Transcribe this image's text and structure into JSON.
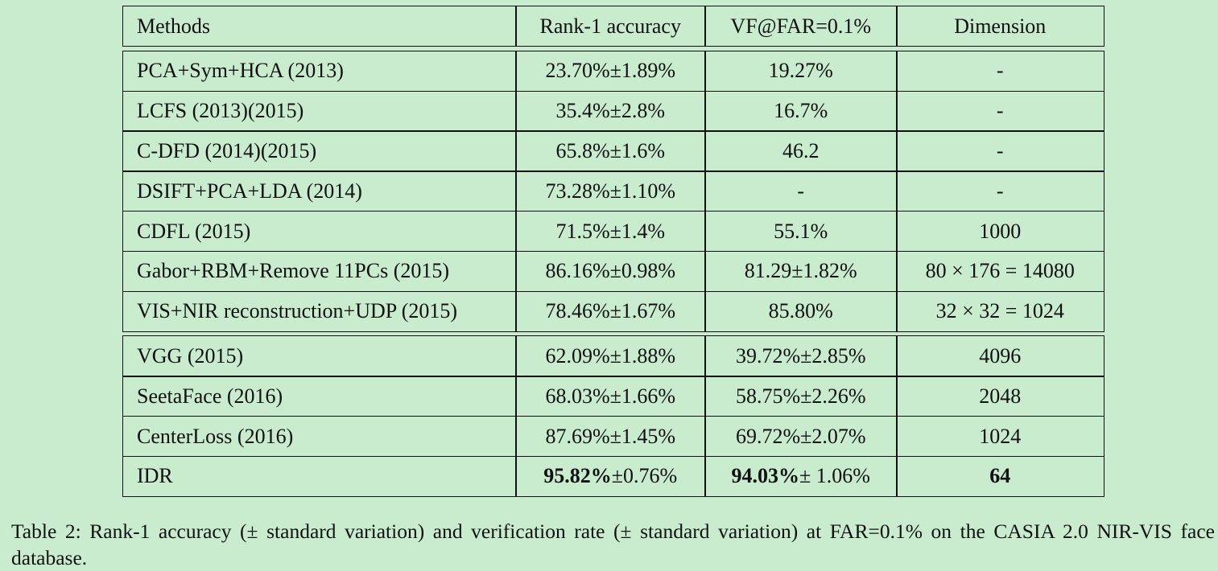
{
  "table": {
    "header": [
      "Methods",
      "Rank-1 accuracy",
      "VF@FAR=0.1%",
      "Dimension"
    ],
    "groups": [
      [
        [
          "PCA+Sym+HCA (2013)",
          "23.70%±1.89%",
          "19.27%",
          "-"
        ],
        [
          "LCFS (2013)(2015)",
          "35.4%±2.8%",
          "16.7%",
          "-"
        ],
        [
          "C-DFD (2014)(2015)",
          "65.8%±1.6%",
          "46.2",
          "-"
        ],
        [
          "DSIFT+PCA+LDA (2014)",
          "73.28%±1.10%",
          "-",
          "-"
        ],
        [
          "CDFL (2015)",
          "71.5%±1.4%",
          "55.1%",
          "1000"
        ],
        [
          "Gabor+RBM+Remove 11PCs (2015)",
          "86.16%±0.98%",
          "81.29±1.82%",
          "80 × 176 = 14080"
        ],
        [
          "VIS+NIR reconstruction+UDP (2015)",
          "78.46%±1.67%",
          "85.80%",
          "32 × 32 = 1024"
        ]
      ],
      [
        [
          "VGG (2015)",
          "62.09%±1.88%",
          "39.72%±2.85%",
          "4096"
        ],
        [
          "SeetaFace (2016)",
          "68.03%±1.66%",
          "58.75%±2.26%",
          "2048"
        ],
        [
          "CenterLoss (2016)",
          "87.69%±1.45%",
          "69.72%±2.07%",
          "1024"
        ],
        [
          "IDR",
          {
            "bold": "95.82%",
            "text": "±0.76%"
          },
          {
            "bold": "94.03%",
            "text": "± 1.06%"
          },
          {
            "bold": "64"
          }
        ]
      ]
    ]
  },
  "caption": "Table 2: Rank-1 accuracy (± standard variation) and verification rate (± standard variation) at FAR=0.1% on the CASIA 2.0 NIR-VIS face database."
}
